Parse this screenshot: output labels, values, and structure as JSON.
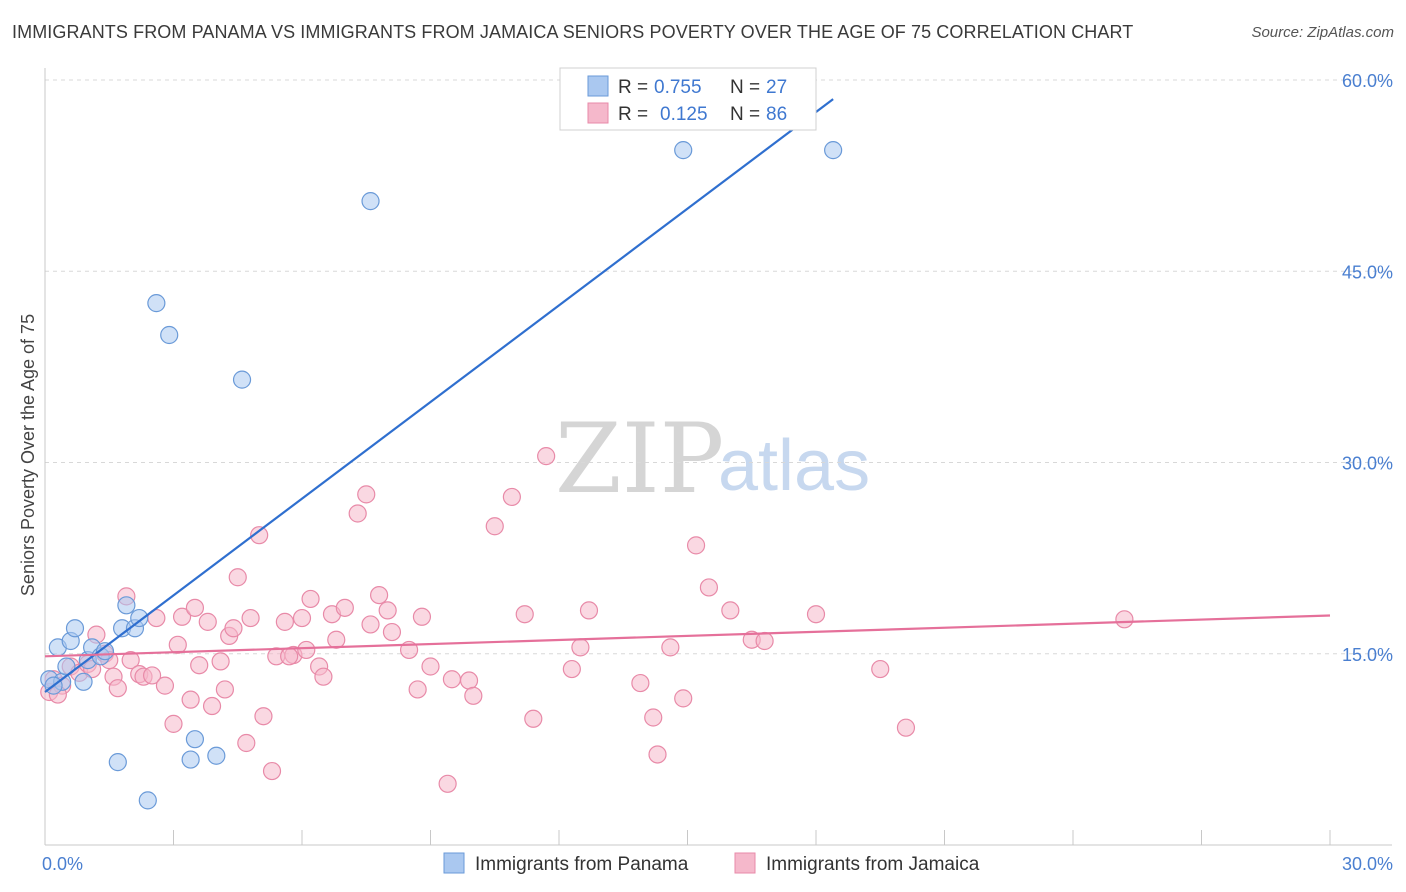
{
  "header": {
    "title": "IMMIGRANTS FROM PANAMA VS IMMIGRANTS FROM JAMAICA SENIORS POVERTY OVER THE AGE OF 75 CORRELATION CHART",
    "source": "Source: ZipAtlas.com"
  },
  "watermark": {
    "zip": "ZIP",
    "atlas": "atlas"
  },
  "colors": {
    "panama_fill": "#aac8f0",
    "panama_stroke": "#6a9ad8",
    "panama_line": "#2f6fcf",
    "jamaica_fill": "#f5b8cb",
    "jamaica_stroke": "#e88aa8",
    "jamaica_line": "#e5709a",
    "grid": "#d8d8d8",
    "axis_text": "#4a7fd0"
  },
  "legend": {
    "rows": [
      {
        "r_label": "R = ",
        "r_value": "0.755",
        "n_label": "N = ",
        "n_value": "27"
      },
      {
        "r_label": "R = ",
        "r_value": "0.125",
        "n_label": "N = ",
        "n_value": "86"
      }
    ]
  },
  "chart_data": {
    "type": "scatter",
    "title": "IMMIGRANTS FROM PANAMA VS IMMIGRANTS FROM JAMAICA SENIORS POVERTY OVER THE AGE OF 75 CORRELATION CHART",
    "xlabel": "",
    "ylabel": "Seniors Poverty Over the Age of 75",
    "xlim": [
      0,
      30
    ],
    "ylim": [
      0,
      60
    ],
    "x_tick_labels": [
      {
        "value": 0,
        "label": "0.0%"
      },
      {
        "value": 30,
        "label": "30.0%"
      }
    ],
    "x_minor_ticks": [
      0,
      3,
      6,
      9,
      12,
      15,
      18,
      21,
      24,
      27,
      30
    ],
    "y_ticks": [
      {
        "value": 15,
        "label": "15.0%"
      },
      {
        "value": 30,
        "label": "30.0%"
      },
      {
        "value": 45,
        "label": "45.0%"
      },
      {
        "value": 60,
        "label": "60.0%"
      }
    ],
    "series": [
      {
        "name": "Immigrants from Panama",
        "color": "#aac8f0",
        "trend": {
          "x": [
            0,
            18.4
          ],
          "y": [
            12.0,
            58.5
          ]
        },
        "points": [
          [
            0.1,
            13.0
          ],
          [
            0.3,
            15.5
          ],
          [
            0.4,
            12.8
          ],
          [
            0.5,
            14.0
          ],
          [
            0.6,
            16.0
          ],
          [
            0.7,
            17.0
          ],
          [
            0.9,
            12.8
          ],
          [
            1.0,
            14.5
          ],
          [
            1.1,
            15.5
          ],
          [
            1.3,
            14.8
          ],
          [
            1.4,
            15.2
          ],
          [
            1.8,
            17.0
          ],
          [
            1.9,
            18.8
          ],
          [
            2.1,
            17.0
          ],
          [
            2.2,
            17.8
          ],
          [
            1.7,
            6.5
          ],
          [
            2.4,
            3.5
          ],
          [
            2.6,
            42.5
          ],
          [
            2.9,
            40.0
          ],
          [
            3.4,
            6.7
          ],
          [
            3.5,
            8.3
          ],
          [
            4.0,
            7.0
          ],
          [
            4.6,
            36.5
          ],
          [
            7.6,
            50.5
          ],
          [
            14.9,
            54.5
          ],
          [
            18.4,
            54.5
          ],
          [
            0.2,
            12.5
          ]
        ]
      },
      {
        "name": "Immigrants from Jamaica",
        "color": "#f5b8cb",
        "trend": {
          "x": [
            0,
            30
          ],
          "y": [
            14.8,
            18.0
          ]
        },
        "points": [
          [
            0.1,
            12.0
          ],
          [
            0.2,
            13.0
          ],
          [
            0.4,
            12.5
          ],
          [
            0.6,
            14.0
          ],
          [
            0.8,
            13.5
          ],
          [
            1.0,
            14.2
          ],
          [
            1.1,
            13.8
          ],
          [
            1.2,
            16.5
          ],
          [
            1.4,
            15.0
          ],
          [
            1.5,
            14.5
          ],
          [
            1.6,
            13.2
          ],
          [
            1.7,
            12.3
          ],
          [
            1.9,
            19.5
          ],
          [
            2.0,
            14.5
          ],
          [
            2.2,
            13.4
          ],
          [
            2.3,
            13.2
          ],
          [
            2.5,
            13.3
          ],
          [
            2.6,
            17.8
          ],
          [
            2.8,
            12.5
          ],
          [
            3.0,
            9.5
          ],
          [
            3.1,
            15.7
          ],
          [
            3.2,
            17.9
          ],
          [
            3.4,
            11.4
          ],
          [
            3.5,
            18.6
          ],
          [
            3.6,
            14.1
          ],
          [
            3.8,
            17.5
          ],
          [
            3.9,
            10.9
          ],
          [
            4.1,
            14.4
          ],
          [
            4.2,
            12.2
          ],
          [
            4.3,
            16.4
          ],
          [
            4.4,
            17.0
          ],
          [
            4.5,
            21.0
          ],
          [
            4.7,
            8.0
          ],
          [
            4.8,
            17.8
          ],
          [
            5.0,
            24.3
          ],
          [
            5.1,
            10.1
          ],
          [
            5.3,
            5.8
          ],
          [
            5.4,
            14.8
          ],
          [
            5.6,
            17.5
          ],
          [
            5.8,
            14.9
          ],
          [
            6.0,
            17.8
          ],
          [
            6.1,
            15.3
          ],
          [
            6.2,
            19.3
          ],
          [
            6.4,
            14.0
          ],
          [
            6.5,
            13.2
          ],
          [
            6.7,
            18.1
          ],
          [
            6.8,
            16.1
          ],
          [
            7.0,
            18.6
          ],
          [
            7.3,
            26.0
          ],
          [
            7.5,
            27.5
          ],
          [
            7.6,
            17.3
          ],
          [
            7.8,
            19.6
          ],
          [
            8.0,
            18.4
          ],
          [
            8.1,
            16.7
          ],
          [
            8.5,
            15.3
          ],
          [
            8.7,
            12.2
          ],
          [
            8.8,
            17.9
          ],
          [
            9.0,
            14.0
          ],
          [
            9.4,
            4.8
          ],
          [
            9.5,
            13.0
          ],
          [
            9.9,
            12.9
          ],
          [
            10.0,
            11.7
          ],
          [
            10.5,
            25.0
          ],
          [
            10.9,
            27.3
          ],
          [
            11.2,
            18.1
          ],
          [
            11.4,
            9.9
          ],
          [
            11.7,
            30.5
          ],
          [
            12.3,
            13.8
          ],
          [
            12.5,
            15.5
          ],
          [
            12.7,
            18.4
          ],
          [
            13.9,
            12.7
          ],
          [
            14.2,
            10.0
          ],
          [
            14.3,
            7.1
          ],
          [
            14.6,
            15.5
          ],
          [
            14.9,
            11.5
          ],
          [
            15.2,
            23.5
          ],
          [
            15.5,
            20.2
          ],
          [
            16.0,
            18.4
          ],
          [
            16.5,
            16.1
          ],
          [
            16.8,
            16.0
          ],
          [
            18.0,
            18.1
          ],
          [
            19.5,
            13.8
          ],
          [
            20.1,
            9.2
          ],
          [
            25.2,
            17.7
          ],
          [
            0.3,
            11.8
          ],
          [
            5.7,
            14.8
          ]
        ]
      }
    ],
    "legend_position": "top-center",
    "bottom_legend": [
      "Immigrants from Panama",
      "Immigrants from Jamaica"
    ]
  }
}
